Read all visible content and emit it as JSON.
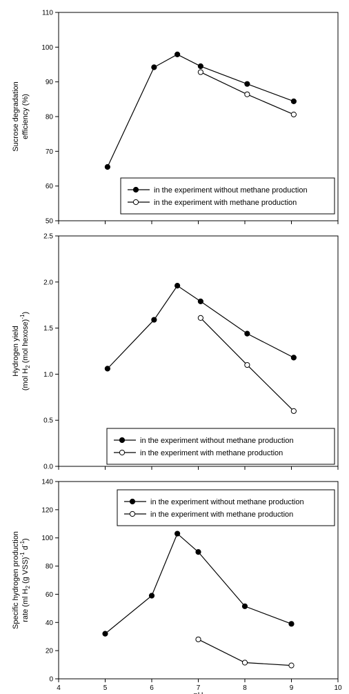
{
  "chart_data": [
    {
      "type": "line",
      "ylabel_lines": [
        "Sucrose degradation",
        "efficiency (%)"
      ],
      "ylim": [
        50,
        110
      ],
      "yticks": [
        "50",
        "60",
        "70",
        "80",
        "90",
        "100",
        "110"
      ],
      "xlim": [
        4,
        10
      ],
      "legend": "bottom-right",
      "series": [
        {
          "name": "in the experiment without methane production",
          "marker": "filled-circle",
          "x": [
            5.05,
            6.05,
            6.55,
            7.05,
            8.05,
            9.05
          ],
          "y": [
            65.5,
            94.2,
            97.9,
            94.5,
            89.4,
            84.4
          ]
        },
        {
          "name": "in the experiment with methane production",
          "marker": "open-circle",
          "x": [
            7.05,
            8.05,
            9.05
          ],
          "y": [
            92.8,
            86.4,
            80.6
          ]
        }
      ]
    },
    {
      "type": "line",
      "ylabel_lines": [
        "Hydrogen yield",
        "(mol H",
        "2",
        " (mol hexose)",
        "-1",
        ")"
      ],
      "ylim": [
        0.0,
        2.5
      ],
      "yticks": [
        "0.0",
        "0.5",
        "1.0",
        "1.5",
        "2.0",
        "2.5"
      ],
      "xlim": [
        4,
        10
      ],
      "legend": "bottom-right",
      "series": [
        {
          "name": "in the experiment without methane production",
          "marker": "filled-circle",
          "x": [
            5.05,
            6.05,
            6.55,
            7.05,
            8.05,
            9.05
          ],
          "y": [
            1.06,
            1.59,
            1.96,
            1.79,
            1.44,
            1.18
          ]
        },
        {
          "name": "in the experiment with methane production",
          "marker": "open-circle",
          "x": [
            7.05,
            8.05,
            9.05
          ],
          "y": [
            1.61,
            1.1,
            0.6
          ]
        }
      ]
    },
    {
      "type": "line",
      "ylabel_lines": [
        "Specific hydrogen production",
        "rate (ml H",
        "2",
        " (g VSS)",
        "-1",
        " d",
        "-1",
        ")"
      ],
      "ylim": [
        0,
        140
      ],
      "yticks": [
        "0",
        "20",
        "40",
        "60",
        "80",
        "100",
        "120",
        "140"
      ],
      "xlim": [
        4,
        10
      ],
      "xticks": [
        "4",
        "5",
        "6",
        "7",
        "8",
        "9",
        "10"
      ],
      "xlabel": "pH",
      "legend": "top-right",
      "series": [
        {
          "name": "in the experiment without methane production",
          "marker": "filled-circle",
          "x": [
            5.0,
            6.0,
            6.55,
            7.0,
            8.0,
            9.0
          ],
          "y": [
            32,
            59,
            103,
            90,
            51.5,
            39
          ]
        },
        {
          "name": "in the experiment with methane production",
          "marker": "open-circle",
          "x": [
            7.0,
            8.0,
            9.0
          ],
          "y": [
            28,
            11.5,
            9.5
          ]
        }
      ]
    }
  ]
}
